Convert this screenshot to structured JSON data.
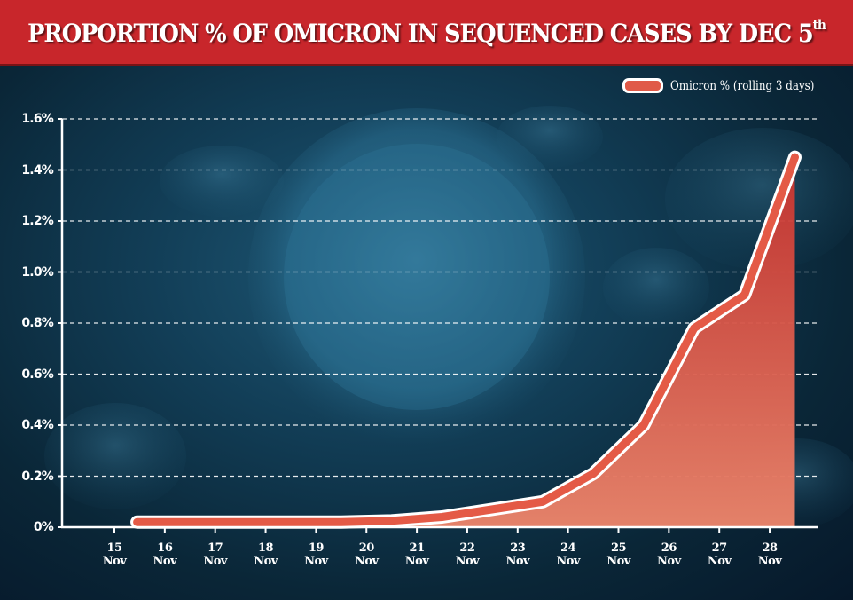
{
  "header": {
    "title": "PROPORTION % OF OMICRON IN SEQUENCED CASES BY DEC 5",
    "title_sup": "th"
  },
  "colors": {
    "title_bar": "#c8262b",
    "line": "#e0473c",
    "line_outline": "#ffffff",
    "area_bottom": "#e8836a",
    "area_top": "#c8322e",
    "background": "#0f3a52"
  },
  "chart_data": {
    "type": "area",
    "title": "PROPORTION % OF OMICRON IN SEQUENCED CASES BY DEC 5th",
    "xlabel": "",
    "ylabel": "",
    "ylim": [
      0,
      1.6
    ],
    "grid": true,
    "legend_position": "top-right",
    "y_ticks": [
      "0%",
      "0.2%",
      "0.4%",
      "0.6%",
      "0.8%",
      "1.0%",
      "1.2%",
      "1.4%",
      "1.6%"
    ],
    "y_tick_values": [
      0,
      0.2,
      0.4,
      0.6,
      0.8,
      1.0,
      1.2,
      1.4,
      1.6
    ],
    "x_ticks": [
      {
        "day": "15",
        "month": "Nov"
      },
      {
        "day": "16",
        "month": "Nov"
      },
      {
        "day": "17",
        "month": "Nov"
      },
      {
        "day": "18",
        "month": "Nov"
      },
      {
        "day": "19",
        "month": "Nov"
      },
      {
        "day": "20",
        "month": "Nov"
      },
      {
        "day": "21",
        "month": "Nov"
      },
      {
        "day": "22",
        "month": "Nov"
      },
      {
        "day": "23",
        "month": "Nov"
      },
      {
        "day": "24",
        "month": "Nov"
      },
      {
        "day": "25",
        "month": "Nov"
      },
      {
        "day": "26",
        "month": "Nov"
      },
      {
        "day": "27",
        "month": "Nov"
      },
      {
        "day": "28",
        "month": "Nov"
      }
    ],
    "series": [
      {
        "name": "Omicron % (rolling 3 days)",
        "x_day_offsets": [
          0.45,
          1.5,
          2.5,
          3.5,
          4.5,
          5.5,
          6.5,
          7.5,
          8.5,
          9.5,
          10.5,
          11.5,
          12.5,
          13.5
        ],
        "values": [
          0.02,
          0.02,
          0.02,
          0.02,
          0.02,
          0.025,
          0.04,
          0.07,
          0.1,
          0.21,
          0.4,
          0.78,
          0.91,
          1.45
        ]
      }
    ]
  }
}
